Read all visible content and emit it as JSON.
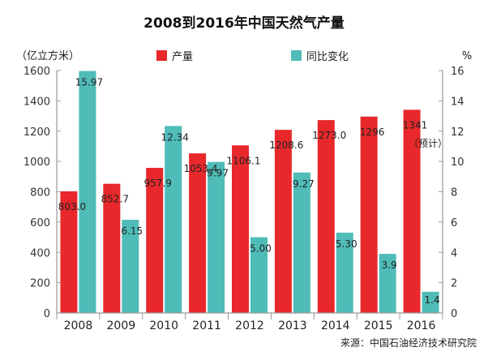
{
  "chart_data": {
    "type": "bar",
    "title": "2008到2016年中国天然气产量",
    "categories": [
      "2008",
      "2009",
      "2010",
      "2011",
      "2012",
      "2013",
      "2014",
      "2015",
      "2016"
    ],
    "series": [
      {
        "name": "产量",
        "axis": "left",
        "color": "#e8282b",
        "values": [
          803.0,
          852.7,
          957.9,
          1053.4,
          1106.1,
          1208.6,
          1273.0,
          1296,
          1341
        ],
        "labels": [
          "803.0",
          "852.7",
          "957.9",
          "1053.4",
          "1106.1",
          "1208.6",
          "1273.0",
          "1296",
          "1341"
        ]
      },
      {
        "name": "同比变化",
        "axis": "right",
        "color": "#4fbcb8",
        "values": [
          15.97,
          6.15,
          12.34,
          9.97,
          5.0,
          9.27,
          5.3,
          3.9,
          1.4
        ],
        "labels": [
          "15.97",
          "6.15",
          "12.34",
          "9.97",
          "5.00",
          "9.27",
          "5.30",
          "3.9",
          "1.4"
        ]
      }
    ],
    "left_axis": {
      "unit": "（亿立方米）",
      "min": 0,
      "max": 1600,
      "ticks": [
        0,
        200,
        400,
        600,
        800,
        1000,
        1200,
        1400,
        1600
      ]
    },
    "right_axis": {
      "unit": "%",
      "min": 0,
      "max": 16,
      "ticks": [
        0,
        2,
        4,
        6,
        8,
        10,
        12,
        14,
        16
      ]
    },
    "annotation": "（预计）",
    "grid": false,
    "legend_position": "top-center",
    "source": "来源：中国石油经济技术研究院"
  }
}
